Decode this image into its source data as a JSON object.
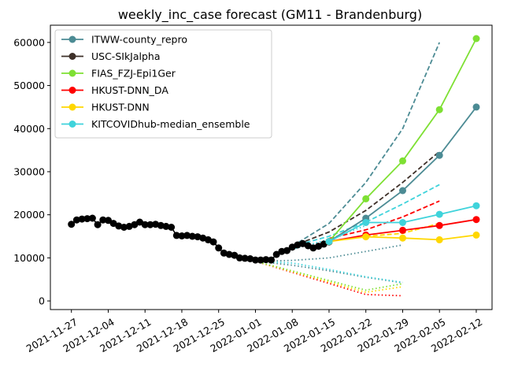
{
  "chart_data": {
    "type": "line",
    "title": "weekly_inc_case forecast (GM11 - Brandenburg)",
    "xlabel": "",
    "ylabel": "",
    "x_range": [
      "2021-11-23",
      "2022-02-15"
    ],
    "ylim": [
      -2000,
      64000
    ],
    "grid": false,
    "legend_position": "top-left",
    "x_tick_labels": [
      "2021-11-27",
      "2021-12-04",
      "2021-12-11",
      "2021-12-18",
      "2021-12-25",
      "2022-01-01",
      "2022-01-08",
      "2022-01-15",
      "2022-01-22",
      "2022-01-29",
      "2022-02-05",
      "2022-02-12"
    ],
    "y_tick_labels": [
      "0",
      "10000",
      "20000",
      "30000",
      "40000",
      "50000",
      "60000"
    ],
    "y_tick_values": [
      0,
      10000,
      20000,
      30000,
      40000,
      50000,
      60000
    ],
    "observed": {
      "color": "#000000",
      "dates": [
        "2021-11-27",
        "2021-11-28",
        "2021-11-29",
        "2021-11-30",
        "2021-12-01",
        "2021-12-02",
        "2021-12-03",
        "2021-12-04",
        "2021-12-05",
        "2021-12-06",
        "2021-12-07",
        "2021-12-08",
        "2021-12-09",
        "2021-12-10",
        "2021-12-11",
        "2021-12-12",
        "2021-12-13",
        "2021-12-14",
        "2021-12-15",
        "2021-12-16",
        "2021-12-17",
        "2021-12-18",
        "2021-12-19",
        "2021-12-20",
        "2021-12-21",
        "2021-12-22",
        "2021-12-23",
        "2021-12-24",
        "2021-12-25",
        "2021-12-26",
        "2021-12-27",
        "2021-12-28",
        "2021-12-29",
        "2021-12-30",
        "2021-12-31",
        "2022-01-01",
        "2022-01-02",
        "2022-01-03",
        "2022-01-04",
        "2022-01-05",
        "2022-01-06",
        "2022-01-07",
        "2022-01-08",
        "2022-01-09",
        "2022-01-10",
        "2022-01-11",
        "2022-01-12",
        "2022-01-13",
        "2022-01-14",
        "2022-01-15"
      ],
      "values": [
        17800,
        18800,
        19000,
        19100,
        19200,
        17700,
        18800,
        18700,
        18000,
        17400,
        17100,
        17300,
        17700,
        18300,
        17700,
        17700,
        17800,
        17500,
        17300,
        17100,
        15200,
        15100,
        15200,
        15000,
        14900,
        14600,
        14200,
        13700,
        12300,
        11100,
        10800,
        10600,
        10000,
        9900,
        9800,
        9500,
        9500,
        9600,
        9500,
        10800,
        11500,
        11700,
        12500,
        13000,
        13300,
        12800,
        12300,
        12700,
        13200,
        13700
      ]
    },
    "series": [
      {
        "name": "ITWW-county_repro",
        "color": "#4c8b94",
        "x": [
          "2022-01-15",
          "2022-01-22",
          "2022-01-29",
          "2022-02-05",
          "2022-02-12"
        ],
        "values": [
          13800,
          19200,
          25600,
          33800,
          45000
        ]
      },
      {
        "name": "USC-SIkJalpha",
        "color": "#3e3029",
        "x": [],
        "values": []
      },
      {
        "name": "FIAS_FZJ-Epi1Ger",
        "color": "#7ee033",
        "x": [
          "2022-01-15",
          "2022-01-22",
          "2022-01-29",
          "2022-02-05",
          "2022-02-12"
        ],
        "values": [
          13800,
          23700,
          32500,
          44400,
          60900
        ]
      },
      {
        "name": "HKUST-DNN_DA",
        "color": "#ff0000",
        "x": [
          "2022-01-15",
          "2022-01-22",
          "2022-01-29",
          "2022-02-05",
          "2022-02-12"
        ],
        "values": [
          13800,
          15300,
          16400,
          17500,
          18900
        ]
      },
      {
        "name": "HKUST-DNN",
        "color": "#ffd700",
        "x": [
          "2022-01-15",
          "2022-01-22",
          "2022-01-29",
          "2022-02-05",
          "2022-02-12"
        ],
        "values": [
          13800,
          14900,
          14600,
          14200,
          15300
        ]
      },
      {
        "name": "KITCOVIDhub-median_ensemble",
        "color": "#3fd3db",
        "x": [
          "2022-01-15",
          "2022-01-22",
          "2022-01-29",
          "2022-02-05",
          "2022-02-12"
        ],
        "values": [
          13800,
          18200,
          18200,
          20100,
          22100
        ]
      }
    ],
    "dashed_upper": [
      {
        "color": "#4c8b94",
        "x": [
          "2022-01-08",
          "2022-01-15",
          "2022-01-22",
          "2022-01-29",
          "2022-02-05"
        ],
        "values": [
          12700,
          18000,
          27500,
          40000,
          60000
        ]
      },
      {
        "color": "#3e3029",
        "x": [
          "2022-01-08",
          "2022-01-15",
          "2022-01-22",
          "2022-01-29",
          "2022-02-05"
        ],
        "values": [
          12700,
          16000,
          21000,
          27500,
          34700
        ]
      },
      {
        "color": "#3fd3db",
        "x": [
          "2022-01-08",
          "2022-01-15",
          "2022-01-22",
          "2022-01-29",
          "2022-02-05"
        ],
        "values": [
          12700,
          15000,
          18300,
          22500,
          27000
        ]
      },
      {
        "color": "#ff0000",
        "x": [
          "2022-01-15",
          "2022-01-22",
          "2022-01-29",
          "2022-02-05"
        ],
        "values": [
          14500,
          16500,
          19500,
          23200
        ]
      },
      {
        "color": "#ffd700",
        "x": [
          "2022-01-22",
          "2022-01-29",
          "2022-02-05"
        ],
        "values": [
          15000,
          15700,
          18000
        ]
      }
    ],
    "dotted_lower": [
      {
        "color": "#4c8b94",
        "x": [
          "2022-01-01",
          "2022-01-08",
          "2022-01-15",
          "2022-01-22",
          "2022-01-29"
        ],
        "values": [
          9200,
          8300,
          7000,
          5500,
          4200
        ]
      },
      {
        "color": "#3fd3db",
        "x": [
          "2022-01-01",
          "2022-01-08",
          "2022-01-15",
          "2022-01-22",
          "2022-01-29"
        ],
        "values": [
          9200,
          8800,
          7300,
          5600,
          4300
        ]
      },
      {
        "color": "#ff0000",
        "x": [
          "2022-01-01",
          "2022-01-22",
          "2022-01-29"
        ],
        "values": [
          9200,
          1500,
          1200
        ]
      },
      {
        "color": "#ffd700",
        "x": [
          "2022-01-01",
          "2022-01-22",
          "2022-01-29"
        ],
        "values": [
          9200,
          2000,
          3300
        ]
      },
      {
        "color": "#7ee033",
        "x": [
          "2022-01-01",
          "2022-01-22",
          "2022-01-29"
        ],
        "values": [
          9200,
          2500,
          4000
        ]
      },
      {
        "color": "#4c8b94",
        "x": [
          "2022-01-01",
          "2022-01-08",
          "2022-01-15",
          "2022-01-22",
          "2022-01-29"
        ],
        "values": [
          9200,
          9400,
          10000,
          11500,
          13000
        ]
      },
      {
        "color": "#3fd3db",
        "x": [
          "2022-01-08",
          "2022-01-15",
          "2022-01-22"
        ],
        "values": [
          12000,
          14300,
          17500
        ]
      }
    ]
  }
}
